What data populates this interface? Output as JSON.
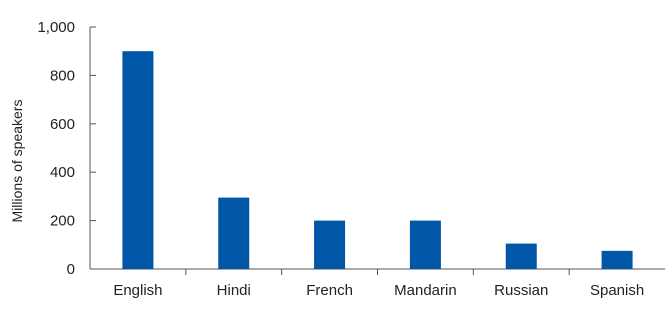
{
  "chart_data": {
    "type": "bar",
    "categories": [
      "English",
      "Hindi",
      "French",
      "Mandarin",
      "Russian",
      "Spanish"
    ],
    "values": [
      900,
      295,
      200,
      200,
      105,
      75
    ],
    "title": "",
    "xlabel": "",
    "ylabel": "Millions of speakers",
    "ylim": [
      0,
      1000
    ],
    "yticks": [
      0,
      200,
      400,
      600,
      800,
      1000
    ],
    "ytick_labels": [
      "0",
      "200",
      "400",
      "600",
      "800",
      "1,000"
    ],
    "grid": false,
    "legend": "none",
    "bar_color": "#0057a8",
    "axis_color": "#555555"
  }
}
